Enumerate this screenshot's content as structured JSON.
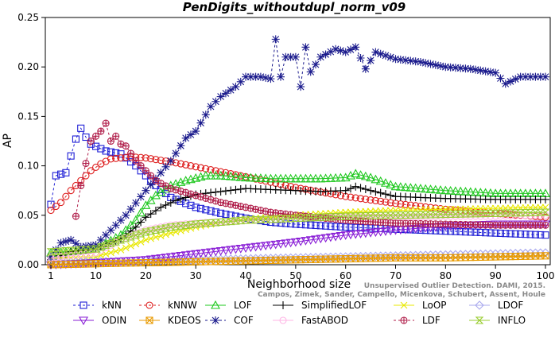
{
  "chart_data": {
    "type": "line",
    "title": "PenDigits_withoutdupl_norm_v09",
    "xlabel": "Neighborhood size",
    "ylabel": "AP",
    "xlim": [
      1,
      100
    ],
    "ylim": [
      0,
      0.25
    ],
    "xticks": [
      1,
      10,
      20,
      30,
      40,
      50,
      60,
      70,
      80,
      90,
      100
    ],
    "xtick_labels": [
      "1",
      "10",
      "20",
      "30",
      "40",
      "50",
      "60",
      "70",
      "80",
      "90",
      "100"
    ],
    "yticks": [
      0,
      0.05,
      0.1,
      0.15,
      0.2,
      0.25
    ],
    "ytick_labels": [
      "0.00",
      "0.05",
      "0.10",
      "0.15",
      "0.20",
      "0.25"
    ],
    "grid": false,
    "legend_position": "bottom",
    "credit": "Campos, Zimek, Sander, Campello, Micenkova, Schubert, Assent, Houle",
    "credit_partial": "Unsupervised Outlier Detection. DAMI, 2015.",
    "series": [
      {
        "name": "kNN",
        "color": "#1f1fd6",
        "marker": "square",
        "dashed": true,
        "points": [
          [
            1,
            0.061
          ],
          [
            2,
            0.09
          ],
          [
            4,
            0.093
          ],
          [
            6,
            0.127
          ],
          [
            7,
            0.138
          ],
          [
            8,
            0.129
          ],
          [
            9,
            0.122
          ],
          [
            12,
            0.115
          ],
          [
            15,
            0.112
          ],
          [
            18,
            0.1
          ],
          [
            22,
            0.08
          ],
          [
            25,
            0.068
          ],
          [
            30,
            0.058
          ],
          [
            35,
            0.052
          ],
          [
            40,
            0.047
          ],
          [
            45,
            0.043
          ],
          [
            50,
            0.041
          ],
          [
            60,
            0.038
          ],
          [
            70,
            0.036
          ],
          [
            80,
            0.034
          ],
          [
            90,
            0.032
          ],
          [
            100,
            0.03
          ]
        ]
      },
      {
        "name": "kNNW",
        "color": "#dd1e1e",
        "marker": "circle",
        "dashed": true,
        "points": [
          [
            1,
            0.055
          ],
          [
            3,
            0.063
          ],
          [
            5,
            0.075
          ],
          [
            7,
            0.085
          ],
          [
            9,
            0.095
          ],
          [
            11,
            0.102
          ],
          [
            13,
            0.107
          ],
          [
            15,
            0.108
          ],
          [
            17,
            0.109
          ],
          [
            20,
            0.108
          ],
          [
            25,
            0.104
          ],
          [
            30,
            0.099
          ],
          [
            40,
            0.089
          ],
          [
            50,
            0.078
          ],
          [
            60,
            0.069
          ],
          [
            70,
            0.062
          ],
          [
            80,
            0.056
          ],
          [
            90,
            0.052
          ],
          [
            100,
            0.048
          ]
        ]
      },
      {
        "name": "LOF",
        "color": "#1ec81e",
        "marker": "triangle",
        "dashed": false,
        "points": [
          [
            1,
            0.012
          ],
          [
            5,
            0.013
          ],
          [
            10,
            0.016
          ],
          [
            15,
            0.03
          ],
          [
            18,
            0.045
          ],
          [
            20,
            0.06
          ],
          [
            22,
            0.07
          ],
          [
            25,
            0.08
          ],
          [
            28,
            0.085
          ],
          [
            32,
            0.09
          ],
          [
            35,
            0.09
          ],
          [
            40,
            0.088
          ],
          [
            45,
            0.087
          ],
          [
            50,
            0.087
          ],
          [
            55,
            0.087
          ],
          [
            60,
            0.088
          ],
          [
            62,
            0.092
          ],
          [
            65,
            0.088
          ],
          [
            70,
            0.079
          ],
          [
            80,
            0.075
          ],
          [
            90,
            0.072
          ],
          [
            100,
            0.072
          ]
        ]
      },
      {
        "name": "SimplifiedLOF",
        "color": "#000000",
        "marker": "plus",
        "dashed": false,
        "points": [
          [
            1,
            0.005
          ],
          [
            5,
            0.013
          ],
          [
            10,
            0.016
          ],
          [
            15,
            0.026
          ],
          [
            18,
            0.038
          ],
          [
            20,
            0.048
          ],
          [
            23,
            0.058
          ],
          [
            26,
            0.065
          ],
          [
            30,
            0.071
          ],
          [
            35,
            0.074
          ],
          [
            40,
            0.077
          ],
          [
            45,
            0.076
          ],
          [
            50,
            0.075
          ],
          [
            55,
            0.074
          ],
          [
            60,
            0.075
          ],
          [
            62,
            0.079
          ],
          [
            65,
            0.075
          ],
          [
            70,
            0.069
          ],
          [
            80,
            0.067
          ],
          [
            90,
            0.066
          ],
          [
            100,
            0.066
          ]
        ]
      },
      {
        "name": "LoOP",
        "color": "#e8e800",
        "marker": "cross",
        "dashed": false,
        "points": [
          [
            1,
            0.006
          ],
          [
            10,
            0.008
          ],
          [
            15,
            0.015
          ],
          [
            20,
            0.025
          ],
          [
            25,
            0.032
          ],
          [
            30,
            0.038
          ],
          [
            35,
            0.043
          ],
          [
            40,
            0.046
          ],
          [
            50,
            0.05
          ],
          [
            60,
            0.053
          ],
          [
            70,
            0.055
          ],
          [
            80,
            0.056
          ],
          [
            90,
            0.057
          ],
          [
            100,
            0.058
          ]
        ]
      },
      {
        "name": "LDOF",
        "color": "#a9a9ee",
        "marker": "diamond",
        "dashed": false,
        "points": [
          [
            1,
            0.002
          ],
          [
            10,
            0.003
          ],
          [
            20,
            0.004
          ],
          [
            30,
            0.005
          ],
          [
            40,
            0.006
          ],
          [
            50,
            0.007
          ],
          [
            60,
            0.008
          ],
          [
            70,
            0.009
          ],
          [
            80,
            0.01
          ],
          [
            90,
            0.011
          ],
          [
            100,
            0.012
          ]
        ]
      },
      {
        "name": "ODIN",
        "color": "#8a1fd6",
        "marker": "triangle-down",
        "dashed": false,
        "points": [
          [
            1,
            0.0
          ],
          [
            10,
            0.002
          ],
          [
            20,
            0.005
          ],
          [
            30,
            0.011
          ],
          [
            40,
            0.017
          ],
          [
            50,
            0.023
          ],
          [
            60,
            0.03
          ],
          [
            70,
            0.035
          ],
          [
            80,
            0.039
          ],
          [
            90,
            0.041
          ],
          [
            100,
            0.041
          ]
        ]
      },
      {
        "name": "KDEOS",
        "color": "#e89a00",
        "marker": "square-x",
        "dashed": false,
        "points": [
          [
            1,
            0.0
          ],
          [
            10,
            0.001
          ],
          [
            20,
            0.002
          ],
          [
            30,
            0.003
          ],
          [
            40,
            0.004
          ],
          [
            50,
            0.005
          ],
          [
            60,
            0.006
          ],
          [
            70,
            0.007
          ],
          [
            80,
            0.007
          ],
          [
            90,
            0.008
          ],
          [
            100,
            0.009
          ]
        ]
      },
      {
        "name": "COF",
        "color": "#1a1a8c",
        "marker": "star",
        "dashed": true,
        "points": [
          [
            1,
            0.008
          ],
          [
            3,
            0.022
          ],
          [
            5,
            0.025
          ],
          [
            7,
            0.018
          ],
          [
            10,
            0.02
          ],
          [
            13,
            0.035
          ],
          [
            16,
            0.05
          ],
          [
            20,
            0.075
          ],
          [
            25,
            0.105
          ],
          [
            28,
            0.128
          ],
          [
            30,
            0.135
          ],
          [
            33,
            0.16
          ],
          [
            35,
            0.17
          ],
          [
            38,
            0.18
          ],
          [
            40,
            0.19
          ],
          [
            43,
            0.19
          ],
          [
            45,
            0.188
          ],
          [
            46,
            0.228
          ],
          [
            47,
            0.19
          ],
          [
            48,
            0.21
          ],
          [
            50,
            0.21
          ],
          [
            51,
            0.18
          ],
          [
            52,
            0.22
          ],
          [
            53,
            0.195
          ],
          [
            55,
            0.21
          ],
          [
            58,
            0.218
          ],
          [
            60,
            0.215
          ],
          [
            62,
            0.22
          ],
          [
            64,
            0.198
          ],
          [
            66,
            0.215
          ],
          [
            70,
            0.208
          ],
          [
            75,
            0.205
          ],
          [
            80,
            0.2
          ],
          [
            85,
            0.198
          ],
          [
            90,
            0.194
          ],
          [
            92,
            0.183
          ],
          [
            95,
            0.19
          ],
          [
            100,
            0.19
          ]
        ]
      },
      {
        "name": "FastABOD",
        "color": "#ffb6e6",
        "marker": "circle",
        "dashed": false,
        "points": [
          [
            1,
            0.007
          ],
          [
            10,
            0.012
          ],
          [
            15,
            0.025
          ],
          [
            20,
            0.035
          ],
          [
            25,
            0.04
          ],
          [
            30,
            0.042
          ],
          [
            40,
            0.045
          ],
          [
            50,
            0.047
          ],
          [
            60,
            0.048
          ],
          [
            70,
            0.048
          ],
          [
            80,
            0.049
          ],
          [
            90,
            0.049
          ],
          [
            100,
            0.05
          ]
        ]
      },
      {
        "name": "LDF",
        "color": "#b01e4a",
        "marker": "circle-plus",
        "dashed": true,
        "points": [
          [
            6,
            0.049
          ],
          [
            7,
            0.08
          ],
          [
            9,
            0.125
          ],
          [
            10,
            0.13
          ],
          [
            11,
            0.135
          ],
          [
            12,
            0.143
          ],
          [
            13,
            0.125
          ],
          [
            14,
            0.13
          ],
          [
            15,
            0.122
          ],
          [
            16,
            0.12
          ],
          [
            18,
            0.105
          ],
          [
            20,
            0.095
          ],
          [
            22,
            0.085
          ],
          [
            25,
            0.077
          ],
          [
            28,
            0.073
          ],
          [
            30,
            0.07
          ],
          [
            35,
            0.063
          ],
          [
            40,
            0.058
          ],
          [
            45,
            0.053
          ],
          [
            50,
            0.05
          ],
          [
            60,
            0.045
          ],
          [
            70,
            0.042
          ],
          [
            80,
            0.041
          ],
          [
            90,
            0.04
          ],
          [
            100,
            0.04
          ]
        ]
      },
      {
        "name": "INFLO",
        "color": "#9acd32",
        "marker": "hourglass",
        "dashed": false,
        "points": [
          [
            1,
            0.013
          ],
          [
            10,
            0.016
          ],
          [
            15,
            0.025
          ],
          [
            20,
            0.033
          ],
          [
            25,
            0.038
          ],
          [
            30,
            0.041
          ],
          [
            40,
            0.045
          ],
          [
            50,
            0.047
          ],
          [
            60,
            0.049
          ],
          [
            70,
            0.05
          ],
          [
            80,
            0.051
          ],
          [
            90,
            0.052
          ],
          [
            100,
            0.053
          ]
        ]
      }
    ]
  }
}
